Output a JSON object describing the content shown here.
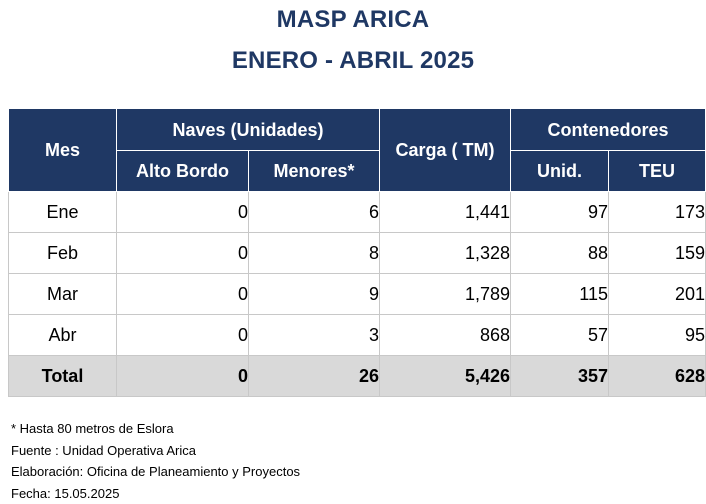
{
  "header": {
    "title": "MASP ARICA",
    "subtitle": "ENERO - ABRIL 2025"
  },
  "table": {
    "headers": {
      "mes": "Mes",
      "naves": "Naves (Unidades)",
      "alto_bordo": "Alto Bordo",
      "menores": "Menores*",
      "carga": "Carga ( TM)",
      "contenedores": "Contenedores",
      "unid": "Unid.",
      "teu": "TEU"
    },
    "rows": [
      {
        "mes": "Ene",
        "alto_bordo": "0",
        "menores": "6",
        "carga": "1,441",
        "unid": "97",
        "teu": "173"
      },
      {
        "mes": "Feb",
        "alto_bordo": "0",
        "menores": "8",
        "carga": "1,328",
        "unid": "88",
        "teu": "159"
      },
      {
        "mes": "Mar",
        "alto_bordo": "0",
        "menores": "9",
        "carga": "1,789",
        "unid": "115",
        "teu": "201"
      },
      {
        "mes": "Abr",
        "alto_bordo": "0",
        "menores": "3",
        "carga": "868",
        "unid": "57",
        "teu": "95"
      }
    ],
    "total": {
      "mes": "Total",
      "alto_bordo": "0",
      "menores": "26",
      "carga": "5,426",
      "unid": "357",
      "teu": "628"
    }
  },
  "notes": {
    "footnote": "* Hasta 80 metros de Eslora",
    "source": "Fuente : Unidad Operativa Arica",
    "prepared": "Elaboración: Oficina de Planeamiento y Proyectos",
    "date": "Fecha: 15.05.2025"
  }
}
